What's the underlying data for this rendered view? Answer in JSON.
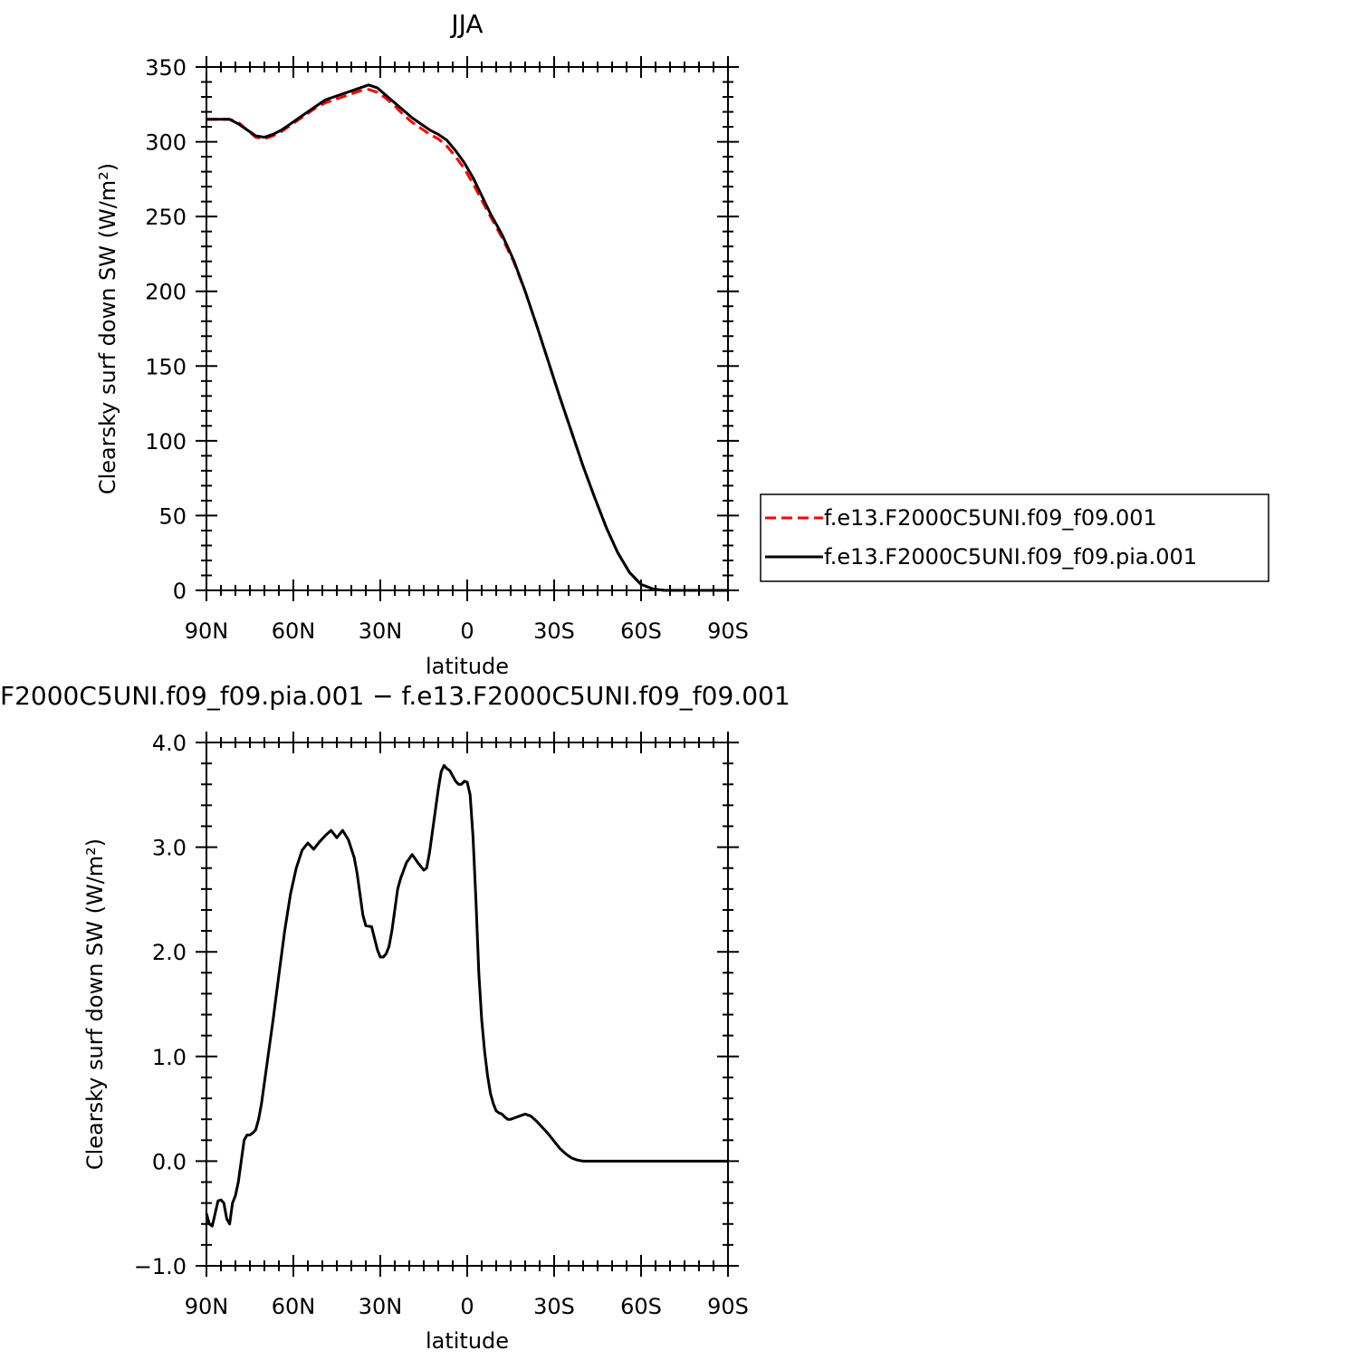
{
  "chart_data": [
    {
      "type": "line",
      "title": "JJA",
      "xlabel": "latitude",
      "ylabel": "Clearsky surf down SW (W/m²)",
      "xlim": [
        90,
        -90
      ],
      "ylim": [
        0,
        350
      ],
      "x_ticks": [
        90,
        60,
        30,
        0,
        -30,
        -60,
        -90
      ],
      "x_tick_labels": [
        "90N",
        "60N",
        "30N",
        "0",
        "30S",
        "60S",
        "90S"
      ],
      "y_ticks": [
        0,
        50,
        100,
        150,
        200,
        250,
        300,
        350
      ],
      "y_tick_labels": [
        "0",
        "50",
        "100",
        "150",
        "200",
        "250",
        "300",
        "350"
      ],
      "legend_position": "right",
      "series": [
        {
          "name": "f.e13.F2000C5UNI.f09_f09.001",
          "color": "#ff0000",
          "dash": "dashed",
          "x": [
            90,
            86,
            82,
            79,
            76,
            73,
            70,
            67,
            64,
            61,
            58,
            55,
            52,
            49,
            46,
            43,
            40,
            37,
            34,
            31,
            28,
            25,
            22,
            19,
            16,
            13,
            10,
            7,
            4,
            1,
            -2,
            -5,
            -8,
            -12,
            -16,
            -20,
            -24,
            -28,
            -32,
            -36,
            -40,
            -44,
            -48,
            -52,
            -56,
            -60,
            -64,
            -68,
            -72,
            -76,
            -80,
            -84,
            -88,
            -90
          ],
          "y": [
            315,
            315,
            315,
            313,
            308,
            303,
            302,
            304,
            307,
            311,
            315,
            319,
            323,
            326,
            328,
            330,
            332,
            334,
            335,
            333,
            329,
            324,
            318,
            313,
            309,
            305,
            302,
            297,
            290,
            282,
            272,
            261,
            250,
            236,
            220,
            200,
            177,
            153,
            129,
            106,
            83,
            62,
            42,
            25,
            12,
            4,
            1,
            0,
            0,
            0,
            0,
            0,
            0,
            0
          ]
        },
        {
          "name": "f.e13.F2000C5UNI.f09_f09.pia.001",
          "color": "#000000",
          "dash": "solid",
          "x": [
            90,
            86,
            82,
            79,
            76,
            73,
            70,
            67,
            64,
            61,
            58,
            55,
            52,
            49,
            46,
            43,
            40,
            37,
            34,
            31,
            28,
            25,
            22,
            19,
            16,
            13,
            10,
            7,
            4,
            1,
            -2,
            -5,
            -8,
            -12,
            -16,
            -20,
            -24,
            -28,
            -32,
            -36,
            -40,
            -44,
            -48,
            -52,
            -56,
            -60,
            -64,
            -68,
            -72,
            -76,
            -80,
            -84,
            -88,
            -90
          ],
          "y": [
            315,
            315,
            315,
            312,
            308,
            304,
            303,
            305,
            308,
            312,
            316,
            320,
            324,
            328,
            330,
            332,
            334,
            336,
            338,
            336,
            331,
            326,
            321,
            316,
            312,
            308,
            305,
            301,
            294,
            286,
            276,
            264,
            252,
            238,
            221,
            200,
            177,
            153,
            129,
            106,
            83,
            62,
            42,
            25,
            12,
            4,
            1,
            0,
            0,
            0,
            0,
            0,
            0,
            0
          ]
        }
      ]
    },
    {
      "type": "line",
      "title": "F2000C5UNI.f09_f09.pia.001 − f.e13.F2000C5UNI.f09_f09.001",
      "xlabel": "latitude",
      "ylabel": "Clearsky surf down SW (W/m²)",
      "xlim": [
        90,
        -90
      ],
      "ylim": [
        -1.0,
        4.0
      ],
      "x_ticks": [
        90,
        60,
        30,
        0,
        -30,
        -60,
        -90
      ],
      "x_tick_labels": [
        "90N",
        "60N",
        "30N",
        "0",
        "30S",
        "60S",
        "90S"
      ],
      "y_ticks": [
        -1.0,
        0.0,
        1.0,
        2.0,
        3.0,
        4.0
      ],
      "y_tick_labels": [
        "−1.0",
        "0.0",
        "1.0",
        "2.0",
        "3.0",
        "4.0"
      ],
      "series": [
        {
          "color": "#000000",
          "dash": "solid",
          "x": [
            90,
            89,
            88,
            87,
            86,
            85,
            84,
            83,
            82,
            81,
            80,
            79,
            78,
            77,
            76,
            75,
            74,
            73,
            72,
            71,
            69,
            67,
            65,
            63,
            61,
            59,
            57,
            55,
            53,
            51,
            49,
            47,
            45,
            43,
            41,
            39,
            38,
            37,
            36,
            35,
            33,
            31,
            30,
            29,
            28,
            27,
            26,
            25,
            24,
            23,
            21,
            19,
            17,
            15,
            14,
            13,
            12,
            11,
            10,
            9,
            8,
            7,
            6,
            5,
            4,
            3,
            2,
            1,
            0,
            -1,
            -2,
            -3,
            -4,
            -5,
            -6,
            -7,
            -8,
            -9,
            -10,
            -11,
            -12,
            -13,
            -14,
            -15,
            -16,
            -18,
            -20,
            -22,
            -24,
            -26,
            -28,
            -30,
            -32,
            -34,
            -36,
            -38,
            -40,
            -43,
            -46,
            -49,
            -52,
            -55,
            -58,
            -62,
            -66,
            -70,
            -75,
            -80,
            -85,
            -90
          ],
          "y": [
            -0.5,
            -0.6,
            -0.62,
            -0.5,
            -0.38,
            -0.37,
            -0.4,
            -0.55,
            -0.6,
            -0.4,
            -0.33,
            -0.2,
            0.0,
            0.2,
            0.25,
            0.25,
            0.27,
            0.3,
            0.4,
            0.55,
            0.95,
            1.35,
            1.78,
            2.2,
            2.55,
            2.8,
            2.97,
            3.04,
            2.98,
            3.05,
            3.11,
            3.16,
            3.09,
            3.16,
            3.07,
            2.9,
            2.75,
            2.55,
            2.35,
            2.25,
            2.24,
            2.02,
            1.95,
            1.95,
            1.98,
            2.05,
            2.2,
            2.4,
            2.6,
            2.7,
            2.85,
            2.93,
            2.85,
            2.78,
            2.8,
            2.95,
            3.15,
            3.35,
            3.55,
            3.72,
            3.78,
            3.75,
            3.73,
            3.68,
            3.63,
            3.6,
            3.6,
            3.63,
            3.62,
            3.5,
            3.1,
            2.5,
            1.8,
            1.35,
            1.05,
            0.82,
            0.65,
            0.55,
            0.48,
            0.46,
            0.45,
            0.42,
            0.4,
            0.4,
            0.41,
            0.43,
            0.45,
            0.43,
            0.38,
            0.32,
            0.26,
            0.19,
            0.12,
            0.07,
            0.03,
            0.01,
            0.0,
            0.0,
            0.0,
            0.0,
            0.0,
            0.0,
            0.0,
            0.0,
            0.0,
            0.0,
            0.0,
            0.0,
            0.0,
            0.0
          ]
        }
      ]
    }
  ]
}
